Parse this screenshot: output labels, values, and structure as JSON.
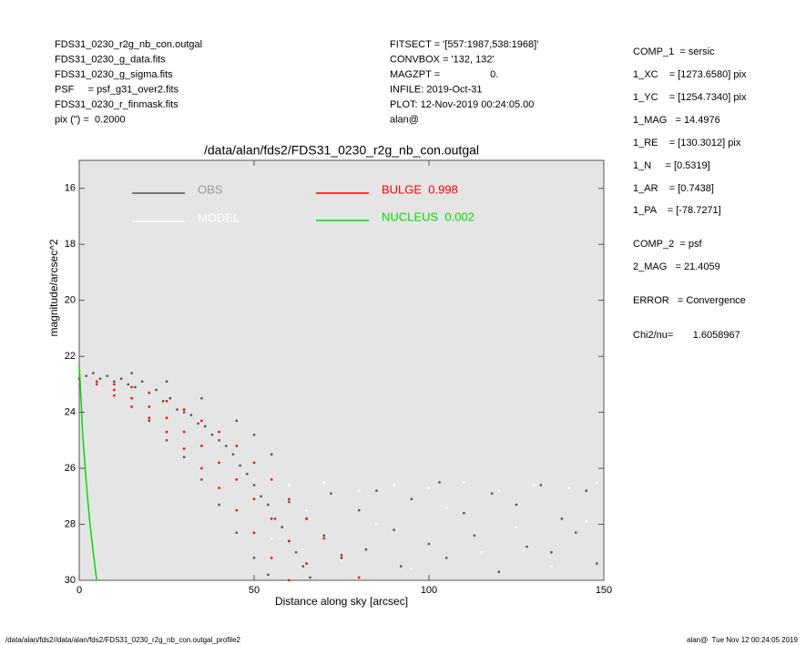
{
  "header_left": [
    "FDS31_0230_r2g_nb_con.outgal",
    "FDS31_0230_g_data.fits",
    "FDS31_0230_g_sigma.fits",
    "PSF     = psf_g31_over2.fits",
    "FDS31_0230_r_finmask.fits",
    "pix (\") =  0.2000"
  ],
  "header_center": [
    "FITSECT = '[557:1987,538:1968]'",
    "CONVBOX = '132, 132'",
    "MAGZPT =                  0.",
    "INFILE: 2019-Oct-31",
    "PLOT: 12-Nov-2019 00:24:05.00",
    "alan@"
  ],
  "params": [
    "COMP_1  = sersic",
    "1_XC    = [1273.6580] pix",
    "1_YC    = [1254.7340] pix",
    "1_MAG   = 14.4976",
    "1_RE    = [130.3012] pix",
    "1_N     = [0.5319]",
    "1_AR    = [0.7438]",
    "1_PA    = [-78.7271]",
    "COMP_2  = psf",
    "2_MAG   = 21.4059",
    "ERROR   = Convergence",
    "Chi2/nu=       1.6058967"
  ],
  "footer_left": "/data/alan/fds2//data/alan/fds2/FDS31_0230_r2g_nb_con.outgal_profile2",
  "footer_right": "alan@  Tue Nov 12 00:24:05 2019",
  "chart_data": {
    "type": "scatter",
    "title": "/data/alan/fds2/FDS31_0230_r2g_nb_con.outgal",
    "x_label": "Distance along sky [arcsec]",
    "y_label": "magnitude/arcsec^2",
    "xlim": [
      0,
      150
    ],
    "xticks": [
      0,
      50,
      100,
      150
    ],
    "ylim": [
      30,
      15
    ],
    "yticks": [
      16,
      18,
      20,
      22,
      24,
      26,
      28,
      30
    ],
    "series": [
      {
        "name": "OBS",
        "type": "scatter",
        "color": "#555555",
        "x": [
          2,
          4,
          6,
          8,
          10,
          12,
          14,
          16,
          18,
          20,
          22,
          24,
          26,
          28,
          30,
          32,
          34,
          36,
          38,
          40,
          42,
          44,
          46,
          48,
          50,
          52,
          54,
          56,
          58,
          60,
          62,
          64,
          66,
          20,
          25,
          30,
          35,
          40,
          45,
          50,
          54,
          15,
          25,
          35,
          45,
          50,
          55,
          60,
          65,
          70,
          72,
          75,
          80,
          82,
          85,
          90,
          92,
          95,
          100,
          103,
          105,
          110,
          113,
          118,
          120,
          125,
          128,
          132,
          135,
          138,
          142,
          145,
          148
        ],
        "values": [
          22.7,
          22.6,
          22.8,
          22.7,
          22.9,
          22.8,
          23.0,
          23.1,
          22.9,
          23.3,
          23.2,
          23.6,
          23.5,
          23.9,
          24.0,
          24.1,
          24.4,
          24.5,
          24.8,
          25.0,
          25.2,
          25.5,
          25.9,
          26.2,
          26.6,
          27.0,
          27.3,
          27.8,
          28.1,
          28.6,
          29.0,
          29.5,
          29.9,
          24.3,
          25.0,
          25.6,
          26.4,
          27.3,
          28.3,
          29.2,
          29.8,
          22.6,
          22.9,
          23.5,
          24.3,
          24.8,
          25.5,
          27.2,
          27.8,
          28.4,
          26.9,
          29.1,
          27.5,
          28.9,
          26.8,
          28.2,
          29.5,
          27.1,
          28.7,
          26.5,
          29.2,
          27.6,
          28.4,
          26.9,
          29.7,
          27.3,
          28.8,
          26.6,
          29.0,
          27.8,
          28.3,
          26.8,
          29.4
        ]
      },
      {
        "name": "MODEL",
        "type": "scatter",
        "color": "#ffffff",
        "x": [
          50,
          60,
          70,
          80,
          90,
          100,
          110,
          120,
          130,
          140,
          148,
          65,
          85,
          105,
          125,
          145,
          75,
          95,
          115,
          135,
          55
        ],
        "values": [
          26.4,
          26.6,
          26.5,
          26.8,
          26.6,
          26.7,
          26.5,
          26.8,
          26.6,
          26.7,
          26.5,
          27.5,
          28.0,
          27.4,
          28.1,
          27.9,
          29.3,
          29.6,
          29.0,
          29.5,
          28.5
        ]
      },
      {
        "name": "BULGE  0.998",
        "type": "scatter",
        "color": "#ff0000",
        "x": [
          0,
          5,
          5,
          10,
          10,
          10,
          15,
          15,
          15,
          20,
          20,
          20,
          25,
          25,
          25,
          30,
          30,
          30,
          35,
          35,
          35,
          40,
          40,
          40,
          45,
          45,
          45,
          50,
          50,
          50,
          55,
          55,
          55,
          60,
          60,
          60,
          65,
          65,
          70,
          75,
          80
        ],
        "values": [
          22.8,
          22.9,
          23.0,
          23.0,
          23.2,
          23.4,
          23.1,
          23.5,
          23.8,
          23.3,
          23.8,
          24.2,
          23.6,
          24.2,
          24.7,
          23.9,
          24.7,
          25.3,
          24.3,
          25.2,
          26.0,
          24.7,
          25.8,
          26.7,
          25.2,
          26.4,
          27.5,
          25.8,
          27.1,
          28.3,
          26.4,
          27.8,
          29.2,
          27.1,
          28.6,
          30.0,
          27.8,
          29.4,
          28.5,
          29.2,
          29.9
        ]
      },
      {
        "name": "NUCLEUS  0.002",
        "type": "line",
        "color": "#00dd00",
        "x": [
          0,
          0.5,
          1,
          2,
          3,
          4,
          5
        ],
        "values": [
          22.3,
          23.5,
          24.8,
          26.5,
          27.9,
          29.0,
          30.0
        ]
      }
    ]
  }
}
